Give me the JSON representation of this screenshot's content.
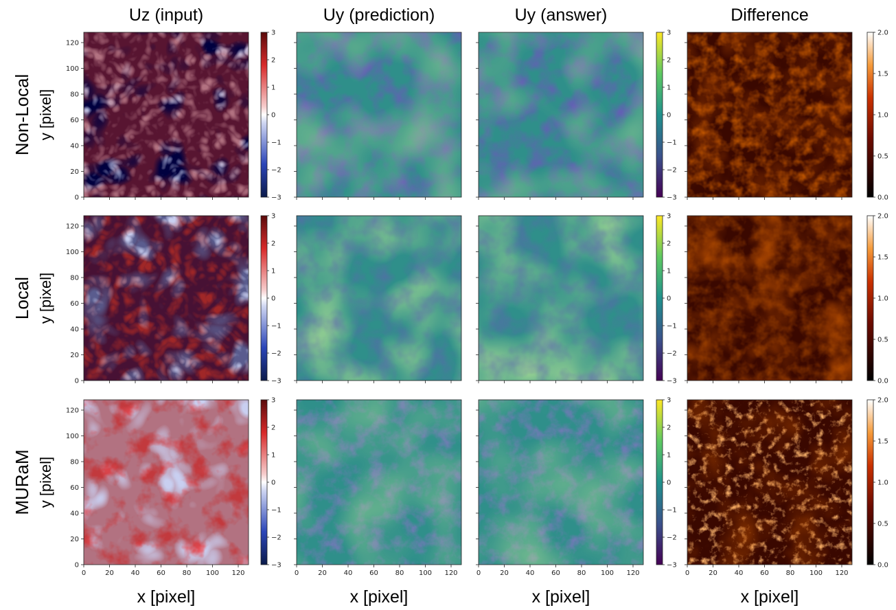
{
  "chart_data": {
    "type": "heatmap",
    "columns": [
      {
        "title": "Uz (input)",
        "xlabel": "x [pixel]",
        "cmap": "seismic-like",
        "clim": [
          -3,
          3
        ],
        "colorbar_ticks": [
          "3",
          "2",
          "1",
          "0",
          "−1",
          "−2",
          "−3"
        ]
      },
      {
        "title": "Uy (prediction)",
        "xlabel": "x [pixel]",
        "cmap": "viridis"
      },
      {
        "title": "Uy (answer)",
        "xlabel": "x [pixel]",
        "cmap": "viridis",
        "clim": [
          -3,
          3
        ],
        "colorbar_ticks": [
          "3",
          "2",
          "1",
          "0",
          "−1",
          "−2",
          "−3"
        ]
      },
      {
        "title": "Difference",
        "xlabel": "x [pixel]",
        "cmap": "gist_heat",
        "clim": [
          0,
          2
        ],
        "colorbar_ticks": [
          "2.0",
          "1.5",
          "1.0",
          "0.5",
          "0.0"
        ]
      }
    ],
    "rows": [
      {
        "label": "Non-Local",
        "ylabel": "y [pixel]"
      },
      {
        "label": "Local",
        "ylabel": "y [pixel]"
      },
      {
        "label": "MURaM",
        "ylabel": "y [pixel]"
      }
    ],
    "x_ticks": [
      "0",
      "20",
      "40",
      "60",
      "80",
      "100",
      "120"
    ],
    "y_ticks": [
      "0",
      "20",
      "40",
      "60",
      "80",
      "100",
      "120"
    ],
    "xlim": [
      0,
      128
    ],
    "ylim": [
      0,
      128
    ]
  }
}
